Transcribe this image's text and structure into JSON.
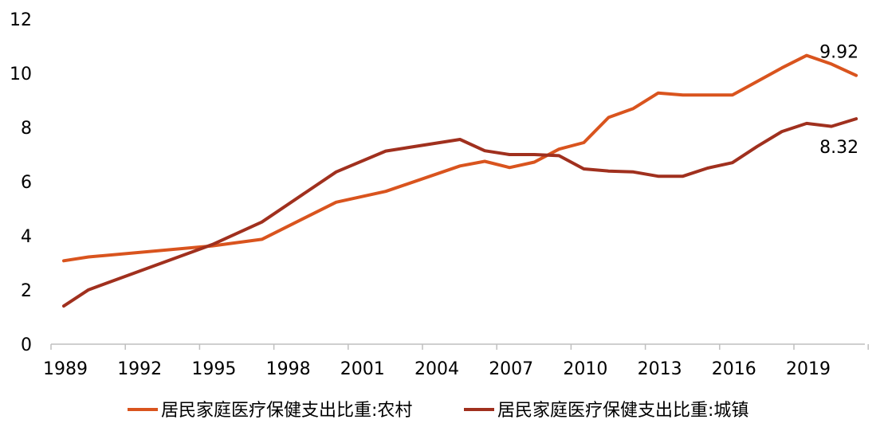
{
  "chart_data": {
    "type": "line",
    "title": "",
    "xlabel": "",
    "ylabel": "",
    "ylim": [
      0,
      12
    ],
    "yticks": [
      0,
      2,
      4,
      6,
      8,
      10,
      12
    ],
    "xlim": [
      1989,
      2021
    ],
    "xticks": [
      "1989",
      "1992",
      "1995",
      "1998",
      "2001",
      "2004",
      "2007",
      "2010",
      "2013",
      "2016",
      "2019"
    ],
    "grid": false,
    "legend_position": "bottom",
    "series": [
      {
        "name": "居民家庭医疗保健支出比重:农村",
        "color": "#D9541E",
        "end_label": "9.92",
        "points": [
          [
            1989,
            3.08
          ],
          [
            1990,
            3.22
          ],
          [
            1995,
            3.63
          ],
          [
            1997,
            3.87
          ],
          [
            2000,
            5.24
          ],
          [
            2002,
            5.64
          ],
          [
            2005,
            6.58
          ],
          [
            2006,
            6.75
          ],
          [
            2007,
            6.52
          ],
          [
            2008,
            6.72
          ],
          [
            2009,
            7.2
          ],
          [
            2010,
            7.44
          ],
          [
            2011,
            8.37
          ],
          [
            2012,
            8.7
          ],
          [
            2013,
            9.27
          ],
          [
            2014,
            9.2
          ],
          [
            2015,
            9.2
          ],
          [
            2016,
            9.2
          ],
          [
            2017,
            9.7
          ],
          [
            2018,
            10.2
          ],
          [
            2019,
            10.66
          ],
          [
            2020,
            10.34
          ],
          [
            2021,
            9.92
          ]
        ]
      },
      {
        "name": "居民家庭医疗保健支出比重:城镇",
        "color": "#A0301E",
        "end_label": "8.32",
        "points": [
          [
            1989,
            1.41
          ],
          [
            1990,
            2.01
          ],
          [
            1995,
            3.68
          ],
          [
            1997,
            4.51
          ],
          [
            2000,
            6.36
          ],
          [
            2002,
            7.13
          ],
          [
            2005,
            7.56
          ],
          [
            2006,
            7.14
          ],
          [
            2007,
            7.0
          ],
          [
            2008,
            7.0
          ],
          [
            2009,
            6.96
          ],
          [
            2010,
            6.47
          ],
          [
            2011,
            6.39
          ],
          [
            2012,
            6.36
          ],
          [
            2013,
            6.2
          ],
          [
            2014,
            6.2
          ],
          [
            2015,
            6.5
          ],
          [
            2016,
            6.7
          ],
          [
            2017,
            7.3
          ],
          [
            2018,
            7.85
          ],
          [
            2019,
            8.15
          ],
          [
            2020,
            8.04
          ],
          [
            2021,
            8.32
          ]
        ]
      }
    ]
  }
}
